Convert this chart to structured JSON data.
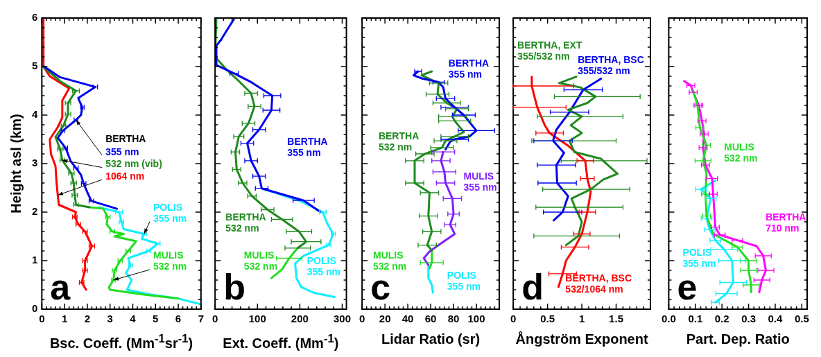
{
  "chart_data": [
    {
      "type": "line",
      "xlabel": "Bsc. Coeff. (Mm$^{-1}$sr$^{-1}$)",
      "ylabel": "Height asl (km)",
      "xlim": [
        0,
        7
      ],
      "xticks": [
        0,
        1,
        2,
        3,
        4,
        5,
        6,
        7
      ],
      "ylim": [
        0,
        6
      ],
      "yticks": [
        0,
        1,
        2,
        3,
        4,
        5,
        6
      ],
      "annotations": [
        {
          "text": "BERTHA",
          "x": 1.5,
          "y": 3.9
        },
        "a"
      ],
      "series": [
        {
          "name": "355 nm",
          "color": "#0000ee",
          "x": [
            0.1,
            0.8,
            2.35,
            1.6,
            1.78,
            1.72,
            1.5,
            0.93,
            0.7,
            1.05,
            1.27,
            1.5,
            1.72,
            1.84,
            2.0,
            2.18,
            3.3
          ],
          "values": [
            5.0,
            4.78,
            4.58,
            4.35,
            4.16,
            4.0,
            3.9,
            3.68,
            3.53,
            3.32,
            3.05,
            2.91,
            2.77,
            2.59,
            2.41,
            2.23,
            2.07
          ],
          "xerrors": [
            null,
            null,
            0.1,
            null,
            0.08,
            null,
            0.08,
            0.08,
            null,
            0.08,
            null,
            0.1,
            null,
            0.1,
            null,
            0.1,
            null
          ]
        },
        {
          "name": "532 nm (vib)",
          "color": "#1f8a1f",
          "x": [
            0.05,
            0.8,
            1.5,
            1.15,
            1.15,
            0.95,
            0.6,
            0.8,
            0.9,
            1.3,
            1.4,
            1.45,
            1.5,
            2.1
          ],
          "values": [
            5.0,
            4.7,
            4.5,
            4.25,
            4.02,
            3.78,
            3.55,
            3.3,
            3.07,
            2.8,
            2.6,
            2.35,
            2.15,
            2.1
          ],
          "xerrors": [
            null,
            null,
            0.15,
            0.12,
            0.12,
            0.1,
            null,
            0.1,
            0.1,
            0.12,
            0.12,
            0.12,
            0.1,
            null
          ]
        },
        {
          "name": "1064 nm",
          "color": "#ff0000",
          "x": [
            0.07,
            0.07,
            0.35,
            1.2,
            0.9,
            0.9,
            0.7,
            0.35,
            0.4,
            0.6,
            0.65,
            0.7,
            0.75,
            1.5,
            1.45,
            1.6,
            1.9,
            2.2,
            1.9,
            1.9,
            1.75,
            1.95
          ],
          "values": [
            6.0,
            5.0,
            4.8,
            4.55,
            4.3,
            3.95,
            3.75,
            3.5,
            3.2,
            2.95,
            2.6,
            2.35,
            2.15,
            2.0,
            1.9,
            1.75,
            1.6,
            1.3,
            1.0,
            0.8,
            0.55,
            0.4
          ],
          "xerrors": [
            null,
            null,
            null,
            null,
            null,
            null,
            null,
            null,
            null,
            null,
            null,
            null,
            null,
            null,
            0.1,
            0.1,
            0.1,
            0.12,
            0.1,
            0.1,
            0.1,
            null
          ]
        },
        {
          "name": "MULIS 532 nm",
          "color": "#22dd22",
          "x": [
            2.1,
            2.7,
            2.9,
            2.85,
            3.1,
            3.6,
            3.2,
            4.15,
            3.8,
            3.45,
            3.2,
            3.15,
            2.95,
            3.0,
            4.5,
            6.0
          ],
          "values": [
            2.1,
            2.07,
            1.9,
            1.75,
            1.6,
            1.55,
            1.5,
            1.4,
            1.2,
            1.0,
            0.8,
            0.6,
            0.45,
            0.4,
            0.3,
            0.22
          ],
          "xerrors": [
            null,
            null,
            0.1,
            null,
            0.1,
            null,
            null,
            null,
            0.1,
            0.1,
            0.1,
            0.08,
            null,
            null,
            null,
            null
          ]
        },
        {
          "name": "POLIS 355 nm",
          "color": "#11eeff",
          "x": [
            2.5,
            3.4,
            3.5,
            3.6,
            4.5,
            4.4,
            5.1,
            4.7,
            3.8,
            3.9,
            3.7,
            3.95,
            3.75,
            4.8,
            6.0,
            7.0
          ],
          "values": [
            2.1,
            2.0,
            1.8,
            1.65,
            1.55,
            1.45,
            1.35,
            1.2,
            1.05,
            0.9,
            0.75,
            0.6,
            0.4,
            0.3,
            0.22,
            0.1
          ],
          "xerrors": [
            null,
            0.15,
            0.1,
            null,
            0.1,
            null,
            0.1,
            0.08,
            null,
            0.08,
            null,
            null,
            null,
            null,
            null,
            null
          ]
        }
      ]
    },
    {
      "type": "line",
      "xlabel": "Ext. Coeff. (Mm$^{-1}$)",
      "xlim": [
        0,
        310
      ],
      "xticks": [
        0,
        100,
        200,
        300
      ],
      "ylim": [
        0,
        6
      ],
      "yticks": [
        0,
        1,
        2,
        3,
        4,
        5,
        6
      ],
      "tick_labels": "x",
      "annotations": [
        "b"
      ],
      "series": [
        {
          "name": "BERTHA 355 nm",
          "color": "#0000ee",
          "x": [
            44,
            28,
            14,
            3,
            3,
            45,
            85,
            135,
            133,
            104,
            76,
            85,
            104,
            110,
            209,
            249
          ],
          "values": [
            5.97,
            5.75,
            5.55,
            5.43,
            5.03,
            4.86,
            4.68,
            4.4,
            4.1,
            3.7,
            3.42,
            3.06,
            2.74,
            2.49,
            2.24,
            2.0
          ],
          "xerrors": [
            null,
            null,
            null,
            null,
            null,
            10,
            null,
            20,
            20,
            15,
            15,
            15,
            15,
            15,
            25,
            null
          ]
        },
        {
          "name": "BERTHA 532 nm",
          "color": "#1f8a1f",
          "x": [
            3,
            0,
            28,
            56,
            85,
            93,
            79,
            56,
            48,
            51,
            65,
            87,
            124,
            158,
            198,
            215,
            195
          ],
          "values": [
            5.97,
            5.2,
            4.93,
            4.7,
            4.45,
            4.18,
            3.83,
            3.56,
            3.24,
            2.88,
            2.6,
            2.33,
            2.05,
            1.85,
            1.6,
            1.39,
            1.26
          ],
          "xerrors": [
            null,
            null,
            null,
            null,
            15,
            15,
            15,
            12,
            10,
            10,
            10,
            10,
            15,
            25,
            30,
            35,
            30
          ]
        },
        {
          "name": "MULIS 532 nm",
          "color": "#22dd22",
          "x": [
            195,
            175,
            158,
            133
          ],
          "values": [
            1.26,
            1.05,
            0.82,
            0.64
          ],
          "xerrors": [
            null,
            30,
            null,
            null
          ]
        },
        {
          "name": "POLIS 355 nm",
          "color": "#11eeff",
          "x": [
            116,
            198,
            254,
            265,
            279,
            268,
            209,
            189,
            192,
            203,
            232,
            282
          ],
          "values": [
            2.47,
            2.24,
            2.0,
            1.76,
            1.55,
            1.32,
            1.1,
            0.94,
            0.64,
            0.46,
            0.34,
            0.25
          ],
          "xerrors": [
            null,
            null,
            8,
            null,
            5,
            5,
            null,
            null,
            null,
            null,
            null,
            null
          ]
        }
      ]
    },
    {
      "type": "line",
      "xlabel": "Lidar Ratio (sr)",
      "xlim": [
        0,
        120
      ],
      "xticks": [
        0,
        20,
        40,
        60,
        80,
        100
      ],
      "ylim": [
        0,
        6
      ],
      "yticks": [
        0,
        1,
        2,
        3,
        4,
        5,
        6
      ],
      "tick_labels": "x",
      "annotations": [
        "c"
      ],
      "series": [
        {
          "name": "BERTHA 355 nm",
          "color": "#0000ee",
          "x": [
            49,
            45,
            53,
            67,
            71,
            73,
            81,
            89,
            100,
            94,
            81,
            77,
            73
          ],
          "values": [
            4.9,
            4.82,
            4.75,
            4.68,
            4.57,
            4.34,
            4.16,
            4.0,
            3.68,
            3.56,
            3.5,
            3.45,
            3.29
          ],
          "xerrors": [
            3,
            null,
            null,
            5,
            null,
            8,
            12,
            10,
            16,
            null,
            12,
            null,
            null
          ]
        },
        {
          "name": "BERTHA 532 nm",
          "color": "#1f8a1f",
          "x": [
            61,
            52,
            67,
            66,
            74,
            83,
            79,
            81,
            89,
            81,
            73,
            70,
            55,
            46,
            46,
            59,
            58,
            61,
            57,
            61
          ],
          "values": [
            4.9,
            4.82,
            4.66,
            4.43,
            4.25,
            4.13,
            3.97,
            3.88,
            3.65,
            3.56,
            3.47,
            3.33,
            3.2,
            3.06,
            2.6,
            2.4,
            1.92,
            1.6,
            1.32,
            1.21
          ],
          "xerrors": [
            null,
            null,
            8,
            10,
            12,
            10,
            12,
            14,
            null,
            12,
            10,
            10,
            8,
            8,
            8,
            8,
            8,
            8,
            8,
            null
          ]
        },
        {
          "name": "MULIS 355 nm",
          "color": "#7f1fff",
          "x": [
            71,
            69,
            72,
            73,
            79,
            80,
            77,
            81,
            67,
            59,
            54,
            58
          ],
          "values": [
            3.24,
            3.06,
            2.83,
            2.6,
            2.28,
            1.96,
            1.74,
            1.55,
            1.32,
            1.19,
            1.05,
            0.91
          ],
          "xerrors": [
            10,
            8,
            10,
            8,
            8,
            5,
            5,
            null,
            null,
            null,
            null,
            null
          ]
        },
        {
          "name": "MULIS 532 nm",
          "color": "#22dd22",
          "x": [
            61,
            61,
            59
          ],
          "values": [
            1.19,
            0.96,
            0.84
          ],
          "xerrors": [
            null,
            10,
            null
          ]
        },
        {
          "name": "POLIS 355 nm",
          "color": "#11eeff",
          "x": [
            58,
            58,
            61,
            62
          ],
          "values": [
            0.87,
            0.64,
            0.5,
            0.34
          ]
        }
      ]
    },
    {
      "type": "line",
      "xlabel": "Ångström Exponent",
      "xlim": [
        0,
        2
      ],
      "xticks": [
        0,
        0.5,
        1,
        1.5
      ],
      "ylim": [
        0,
        6
      ],
      "yticks": [
        0,
        1,
        2,
        3,
        4,
        5,
        6
      ],
      "tick_labels": "x",
      "annotations": [
        "d"
      ],
      "series": [
        {
          "name": "BERTHA, EXT 355/532 nm",
          "color": "#1f8a1f",
          "x": [
            0.92,
            0.67,
            0.98,
            1.2,
            1.08,
            0.8,
            1.0,
            0.84,
            1.0,
            0.82,
            0.89,
            1.28,
            1.31,
            1.52,
            1.31,
            1.13,
            0.85,
            0.9,
            1.0,
            0.95,
            0.77
          ],
          "values": [
            4.79,
            4.66,
            4.57,
            4.38,
            4.25,
            4.11,
            3.97,
            3.79,
            3.63,
            3.47,
            3.24,
            3.1,
            3.06,
            2.79,
            2.67,
            2.47,
            2.28,
            2.1,
            1.8,
            1.51,
            1.32
          ],
          "xerrors": [
            null,
            null,
            null,
            [
              0.6,
              1.85
            ],
            null,
            null,
            [
              0.35,
              1.6
            ],
            null,
            null,
            [
              0.27,
              1.5
            ],
            null,
            null,
            [
              0.7,
              1.95
            ],
            null,
            null,
            [
              0.43,
              1.7
            ],
            null,
            [
              0.33,
              1.6
            ],
            null,
            [
              0.3,
              1.55
            ],
            null
          ]
        },
        {
          "name": "BERTHA, BSC 355/532 nm",
          "color": "#0000ee",
          "x": [
            1.28,
            1.02,
            0.98,
            0.82,
            0.63,
            0.58,
            0.74,
            0.63,
            0.64,
            0.8,
            0.72,
            0.59
          ],
          "values": [
            4.75,
            4.52,
            4.43,
            4.06,
            3.7,
            3.47,
            3.22,
            2.97,
            2.6,
            2.33,
            2.0,
            1.83
          ],
          "xerrors": [
            null,
            0.28,
            null,
            0.28,
            null,
            0.28,
            null,
            0.28,
            0.28,
            null,
            0.28,
            null
          ]
        },
        {
          "name": "BERTHA, BSC 532/1064 nm",
          "color": "#ff0000",
          "x": [
            0.27,
            0.27,
            0.3,
            0.35,
            0.46,
            0.53,
            0.79,
            1.05,
            1.08,
            1.13,
            1.08,
            1.0,
            0.9,
            0.77,
            0.72,
            0.66
          ],
          "values": [
            4.79,
            4.6,
            4.43,
            4.16,
            3.79,
            3.63,
            3.38,
            3.06,
            2.69,
            2.42,
            2.0,
            1.55,
            1.28,
            1.0,
            0.73,
            0.46
          ],
          "xerrors": [
            null,
            [
              0,
              0.88
            ],
            null,
            [
              0,
              0.77
            ],
            null,
            0.2,
            null,
            0.12,
            0.1,
            null,
            0.12,
            0.12,
            0.2,
            null,
            0.2,
            null
          ]
        }
      ]
    },
    {
      "type": "line",
      "xlabel": "Part. Dep. Ratio",
      "xlim": [
        0,
        0.52
      ],
      "xticks": [
        {
          "value": 0,
          "label": "0.0"
        },
        0.1,
        0.2,
        0.3,
        0.4,
        0.5
      ],
      "ylim": [
        0,
        6
      ],
      "yticks": [
        0,
        1,
        2,
        3,
        4,
        5,
        6
      ],
      "tick_labels": "x",
      "annotations": [
        "e"
      ],
      "series": [
        {
          "name": "MULIS 532 nm",
          "color": "#22dd22",
          "x": [
            0.092,
            0.108,
            0.117,
            0.142,
            0.129,
            0.142,
            0.138,
            0.142,
            0.167,
            0.258,
            0.3,
            0.3,
            0.31,
            0.31
          ],
          "values": [
            4.5,
            4.2,
            3.74,
            3.38,
            3.06,
            2.79,
            2.37,
            1.92,
            1.55,
            1.28,
            1.0,
            0.8,
            0.5,
            0.35
          ],
          "xerrors": [
            null,
            0.015,
            0.015,
            0.015,
            0.03,
            null,
            0.015,
            0.015,
            null,
            0.02,
            0.03,
            0.03,
            0.03,
            null
          ]
        },
        {
          "name": "BERTHA 710 nm",
          "color": "#ff00ff",
          "x": [
            0.058,
            0.083,
            0.092,
            0.113,
            0.125,
            0.133,
            0.129,
            0.138,
            0.163,
            0.167,
            0.175,
            0.192,
            0.258,
            0.33,
            0.355,
            0.365,
            0.35,
            0.34
          ],
          "values": [
            4.7,
            4.61,
            4.47,
            4.2,
            3.88,
            3.61,
            3.33,
            2.97,
            2.69,
            2.37,
            1.69,
            1.53,
            1.42,
            1.3,
            1.1,
            0.8,
            0.6,
            0.35
          ],
          "xerrors": [
            null,
            0.015,
            0.015,
            0.015,
            0.015,
            0.015,
            0.015,
            0.015,
            0.02,
            0.015,
            0.015,
            0.02,
            0.02,
            null,
            0.03,
            0.03,
            0.03,
            null
          ]
        },
        {
          "name": "POLIS 355 nm",
          "color": "#11eeff",
          "x": [
            0.175,
            0.121,
            0.158,
            0.142,
            0.154,
            0.175,
            0.208,
            0.238,
            0.242,
            0.217,
            0.175
          ],
          "values": [
            2.65,
            2.47,
            2.28,
            1.87,
            1.64,
            1.42,
            1.23,
            1.0,
            0.55,
            0.32,
            0.14
          ],
          "xerrors": [
            null,
            0.02,
            0.02,
            0.02,
            0.02,
            0.02,
            0.05,
            0.05,
            0.05,
            0.04,
            0.015
          ]
        }
      ]
    }
  ]
}
